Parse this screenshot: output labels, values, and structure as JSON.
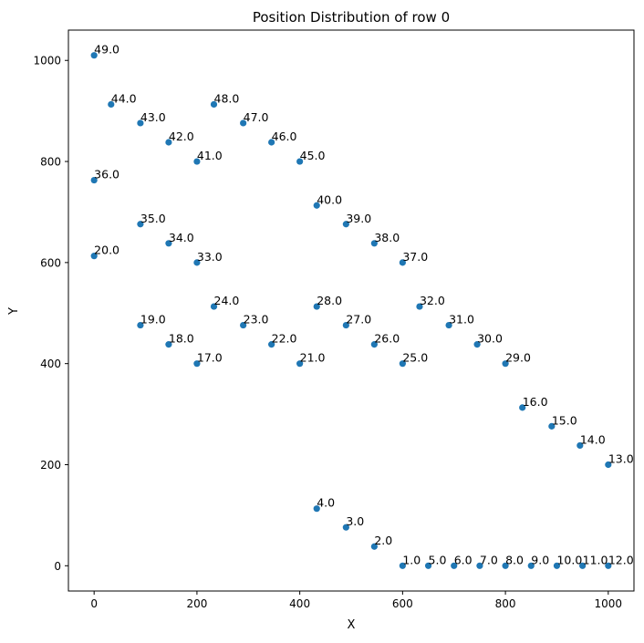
{
  "chart_data": {
    "type": "scatter",
    "title": "Position Distribution of row 0",
    "xlabel": "X",
    "ylabel": "Y",
    "xlim": [
      -50,
      1050
    ],
    "ylim": [
      -50,
      1060
    ],
    "xticks": [
      0,
      200,
      400,
      600,
      800,
      1000
    ],
    "yticks": [
      0,
      200,
      400,
      600,
      800,
      1000
    ],
    "grid": false,
    "point_color": "#1f77b4",
    "points": [
      {
        "x": 600,
        "y": 0,
        "label": "1.0"
      },
      {
        "x": 545,
        "y": 38,
        "label": "2.0"
      },
      {
        "x": 490,
        "y": 76,
        "label": "3.0"
      },
      {
        "x": 433,
        "y": 113,
        "label": "4.0"
      },
      {
        "x": 650,
        "y": 0,
        "label": "5.0"
      },
      {
        "x": 700,
        "y": 0,
        "label": "6.0"
      },
      {
        "x": 750,
        "y": 0,
        "label": "7.0"
      },
      {
        "x": 800,
        "y": 0,
        "label": "8.0"
      },
      {
        "x": 850,
        "y": 0,
        "label": "9.0"
      },
      {
        "x": 900,
        "y": 0,
        "label": "10.0"
      },
      {
        "x": 950,
        "y": 0,
        "label": "11.0"
      },
      {
        "x": 1000,
        "y": 0,
        "label": "12.0"
      },
      {
        "x": 1000,
        "y": 200,
        "label": "13.0"
      },
      {
        "x": 945,
        "y": 238,
        "label": "14.0"
      },
      {
        "x": 890,
        "y": 276,
        "label": "15.0"
      },
      {
        "x": 833,
        "y": 313,
        "label": "16.0"
      },
      {
        "x": 200,
        "y": 400,
        "label": "17.0"
      },
      {
        "x": 145,
        "y": 438,
        "label": "18.0"
      },
      {
        "x": 90,
        "y": 476,
        "label": "19.0"
      },
      {
        "x": 0,
        "y": 613,
        "label": "20.0"
      },
      {
        "x": 400,
        "y": 400,
        "label": "21.0"
      },
      {
        "x": 345,
        "y": 438,
        "label": "22.0"
      },
      {
        "x": 290,
        "y": 476,
        "label": "23.0"
      },
      {
        "x": 233,
        "y": 513,
        "label": "24.0"
      },
      {
        "x": 600,
        "y": 400,
        "label": "25.0"
      },
      {
        "x": 545,
        "y": 438,
        "label": "26.0"
      },
      {
        "x": 490,
        "y": 476,
        "label": "27.0"
      },
      {
        "x": 433,
        "y": 513,
        "label": "28.0"
      },
      {
        "x": 800,
        "y": 400,
        "label": "29.0"
      },
      {
        "x": 745,
        "y": 438,
        "label": "30.0"
      },
      {
        "x": 690,
        "y": 476,
        "label": "31.0"
      },
      {
        "x": 633,
        "y": 513,
        "label": "32.0"
      },
      {
        "x": 200,
        "y": 600,
        "label": "33.0"
      },
      {
        "x": 145,
        "y": 638,
        "label": "34.0"
      },
      {
        "x": 90,
        "y": 676,
        "label": "35.0"
      },
      {
        "x": 0,
        "y": 763,
        "label": "36.0"
      },
      {
        "x": 600,
        "y": 600,
        "label": "37.0"
      },
      {
        "x": 545,
        "y": 638,
        "label": "38.0"
      },
      {
        "x": 490,
        "y": 676,
        "label": "39.0"
      },
      {
        "x": 433,
        "y": 713,
        "label": "40.0"
      },
      {
        "x": 200,
        "y": 800,
        "label": "41.0"
      },
      {
        "x": 145,
        "y": 838,
        "label": "42.0"
      },
      {
        "x": 90,
        "y": 876,
        "label": "43.0"
      },
      {
        "x": 33,
        "y": 913,
        "label": "44.0"
      },
      {
        "x": 400,
        "y": 800,
        "label": "45.0"
      },
      {
        "x": 345,
        "y": 838,
        "label": "46.0"
      },
      {
        "x": 290,
        "y": 876,
        "label": "47.0"
      },
      {
        "x": 233,
        "y": 913,
        "label": "48.0"
      },
      {
        "x": 0,
        "y": 1010,
        "label": "49.0"
      }
    ]
  }
}
